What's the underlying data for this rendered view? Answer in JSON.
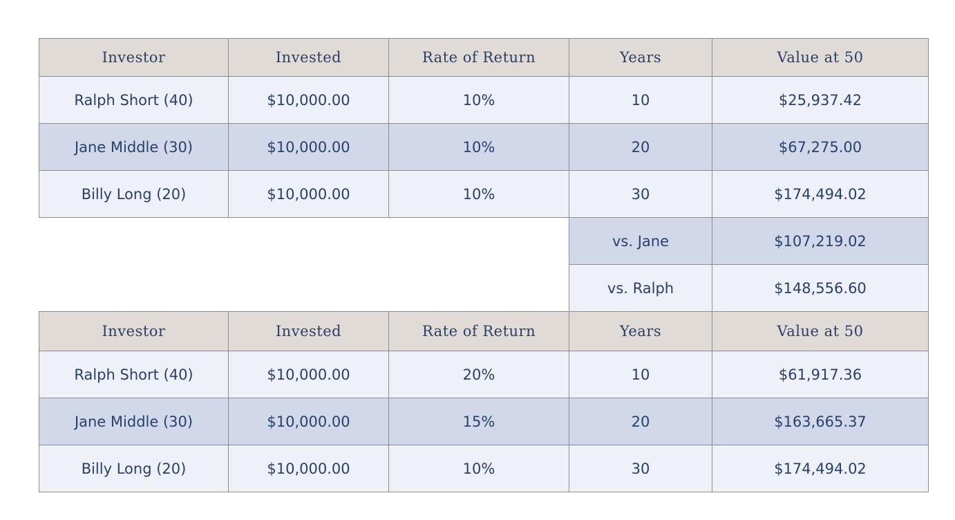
{
  "headers": [
    "Investor",
    "Invested",
    "Rate of Return",
    "Years",
    "Value at 50"
  ],
  "table1": {
    "rows": [
      {
        "investor": "Ralph Short (40)",
        "invested": "$10,000.00",
        "rate": "10%",
        "years": "10",
        "value": "$25,937.42"
      },
      {
        "investor": "Jane Middle (30)",
        "invested": "$10,000.00",
        "rate": "10%",
        "years": "20",
        "value": "$67,275.00"
      },
      {
        "investor": "Billy Long (20)",
        "invested": "$10,000.00",
        "rate": "10%",
        "years": "30",
        "value": "$174,494.02"
      }
    ],
    "comparisons": [
      {
        "label": "vs. Jane",
        "value": "$107,219.02"
      },
      {
        "label": "vs. Ralph",
        "value": "$148,556.60"
      }
    ]
  },
  "table2": {
    "rows": [
      {
        "investor": "Ralph Short (40)",
        "invested": "$10,000.00",
        "rate": "20%",
        "years": "10",
        "value": "$61,917.36"
      },
      {
        "investor": "Jane Middle (30)",
        "invested": "$10,000.00",
        "rate": "15%",
        "years": "20",
        "value": "$163,665.37"
      },
      {
        "investor": "Billy Long (20)",
        "invested": "$10,000.00",
        "rate": "10%",
        "years": "30",
        "value": "$174,494.02"
      }
    ]
  }
}
